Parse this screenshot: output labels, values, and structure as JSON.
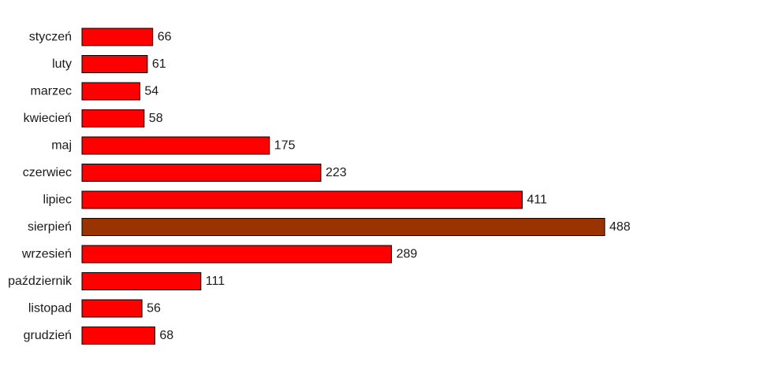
{
  "chart_data": {
    "type": "bar",
    "orientation": "horizontal",
    "categories": [
      "styczeń",
      "luty",
      "marzec",
      "kwiecień",
      "maj",
      "czerwiec",
      "lipiec",
      "sierpień",
      "wrzesień",
      "październik",
      "listopad",
      "grudzień"
    ],
    "values": [
      66,
      61,
      54,
      58,
      175,
      223,
      411,
      488,
      289,
      111,
      56,
      68
    ],
    "value_labels": [
      "66",
      "61",
      "54",
      "58",
      "175",
      "223",
      "411",
      "488",
      "289",
      "111",
      "56",
      "68"
    ],
    "title": "",
    "xlabel": "",
    "ylabel": "",
    "xlim": [
      0,
      488
    ],
    "grid": false,
    "legend": "none",
    "colors": {
      "bar": "#ff0000",
      "highlight": "#993300",
      "outline": "#000000",
      "text": "#1a1a1a"
    },
    "highlight_index": 7
  }
}
